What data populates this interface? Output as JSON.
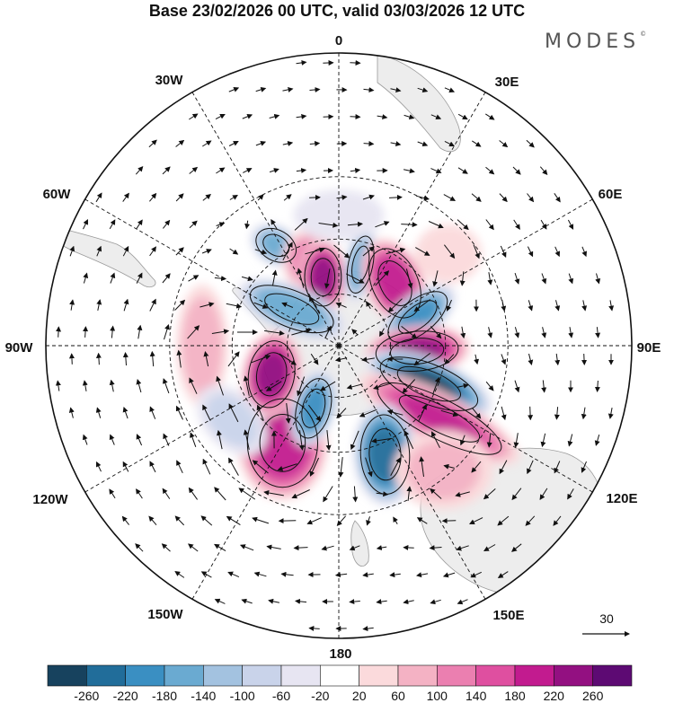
{
  "title": "Base 23/02/2026 00 UTC, valid 03/03/2026 12 UTC",
  "brand": "MODES",
  "brand_mark": "©",
  "projection": "south-polar-stereographic",
  "longitude_labels": {
    "lon_0": "0",
    "lon_30e": "30E",
    "lon_60e": "60E",
    "lon_90e": "90E",
    "lon_120e": "120E",
    "lon_150e": "150E",
    "lon_180": "180",
    "lon_150w": "150W",
    "lon_120w": "120W",
    "lon_90w": "90W",
    "lon_60w": "60W",
    "lon_30w": "30W"
  },
  "reference_vector": {
    "label": "30",
    "value": 30
  },
  "colorbar": {
    "colors": [
      "#17425e",
      "#216d9a",
      "#3a8fc2",
      "#6aaad1",
      "#a3c2e0",
      "#c9d3ea",
      "#e7e5f2",
      "#ffffff",
      "#fbdadc",
      "#f4b2c4",
      "#eb7fb0",
      "#df4fa0",
      "#c21b8f",
      "#931081",
      "#5d0a73"
    ],
    "tick_labels": [
      "-260",
      "-220",
      "-180",
      "-140",
      "-100",
      "-60",
      "-20",
      "20",
      "60",
      "100",
      "140",
      "180",
      "220",
      "260"
    ]
  },
  "chart_data": {
    "type": "heatmap",
    "title": "Base 23/02/2026 00 UTC, valid 03/03/2026 12 UTC",
    "field": "anomaly with wind vectors",
    "levels": [
      -260,
      -220,
      -180,
      -140,
      -100,
      -60,
      -20,
      20,
      60,
      100,
      140,
      180,
      220,
      260
    ],
    "anomaly_centers": [
      {
        "lon": -32,
        "lat": -46,
        "value": -150,
        "sx": 28,
        "sy": 20,
        "rot": 30
      },
      {
        "lon": -20,
        "lat": -56,
        "value": 120,
        "sx": 26,
        "sy": 32,
        "rot": -5
      },
      {
        "lon": -13,
        "lat": -63,
        "value": 250,
        "sx": 24,
        "sy": 38,
        "rot": 0
      },
      {
        "lon": 15,
        "lat": -58,
        "value": -170,
        "sx": 16,
        "sy": 38,
        "rot": 12
      },
      {
        "lon": 42,
        "lat": -58,
        "value": 215,
        "sx": 30,
        "sy": 48,
        "rot": -25
      },
      {
        "lon": 70,
        "lat": -58,
        "value": -190,
        "sx": 46,
        "sy": 22,
        "rot": -38
      },
      {
        "lon": 94,
        "lat": -60,
        "value": 235,
        "sx": 54,
        "sy": 26,
        "rot": -5
      },
      {
        "lon": 113,
        "lat": -53,
        "value": -260,
        "sx": 68,
        "sy": 26,
        "rot": 22
      },
      {
        "lon": 126,
        "lat": -44,
        "value": 180,
        "sx": 90,
        "sy": 26,
        "rot": 27
      },
      {
        "lon": 157,
        "lat": -46,
        "value": -250,
        "sx": 32,
        "sy": 52,
        "rot": -3
      },
      {
        "lon": -150,
        "lat": -48,
        "value": 215,
        "sx": 46,
        "sy": 58,
        "rot": 0
      },
      {
        "lon": -158,
        "lat": -64,
        "value": -200,
        "sx": 22,
        "sy": 40,
        "rot": 15
      },
      {
        "lon": -113,
        "lat": -62,
        "value": 240,
        "sx": 30,
        "sy": 44,
        "rot": 10
      },
      {
        "lon": -52,
        "lat": -67,
        "value": -175,
        "sx": 58,
        "sy": 24,
        "rot": 22
      },
      {
        "lon": -90,
        "lat": -40,
        "value": 80,
        "sx": 26,
        "sy": 62,
        "rot": 0
      },
      {
        "lon": 50,
        "lat": -38,
        "value": 40,
        "sx": 34,
        "sy": 30,
        "rot": 0
      },
      {
        "lon": -125,
        "lat": -42,
        "value": -60,
        "sx": 42,
        "sy": 28,
        "rot": 45
      },
      {
        "lon": 0,
        "lat": -42,
        "value": -40,
        "sx": 46,
        "sy": 26,
        "rot": 0
      },
      {
        "lon": 140,
        "lat": -32,
        "value": 60,
        "sx": 50,
        "sy": 40,
        "rot": 0
      }
    ]
  }
}
